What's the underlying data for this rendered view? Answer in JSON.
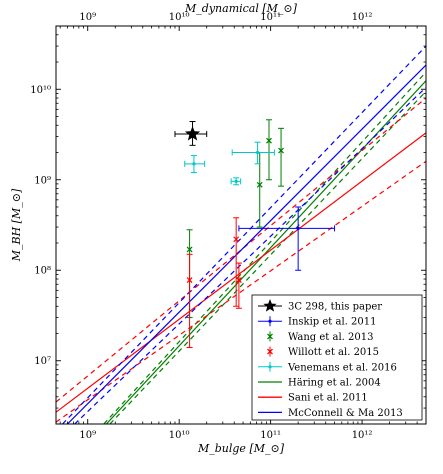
{
  "chart_data": {
    "type": "scatter",
    "xlabel": "M_bulge [M_⊙]",
    "ylabel": "M_BH [M_⊙]",
    "x2label": "M_dynamical [M_⊙]",
    "xscale": "log",
    "yscale": "log",
    "xlim": [
      450000000.0,
      5000000000000.0
    ],
    "ylim": [
      2000000.0,
      50000000000.0
    ],
    "x_ticks": [
      {
        "value": 1000000000.0,
        "label": "10⁹"
      },
      {
        "value": 10000000000.0,
        "label": "10¹⁰"
      },
      {
        "value": 100000000000.0,
        "label": "10¹¹"
      },
      {
        "value": 1000000000000.0,
        "label": "10¹²"
      }
    ],
    "x2_ticks": [
      {
        "value": 1000000000.0,
        "label": "10⁹"
      },
      {
        "value": 10000000000.0,
        "label": "10¹⁰"
      },
      {
        "value": 100000000000.0,
        "label": "10¹¹"
      },
      {
        "value": 1000000000000.0,
        "label": "10¹²"
      }
    ],
    "y_ticks": [
      {
        "value": 10000000.0,
        "label": "10⁷"
      },
      {
        "value": 100000000.0,
        "label": "10⁸"
      },
      {
        "value": 1000000000.0,
        "label": "10⁹"
      },
      {
        "value": 10000000000.0,
        "label": "10¹⁰"
      }
    ],
    "grid": false,
    "legend_position": "bottom-right",
    "series": [
      {
        "name": "3C 298, this paper",
        "kind": "star",
        "color": "#000000",
        "points": [
          {
            "x": 14000000000.0,
            "y": 3200000000.0,
            "xlo": 9000000000.0,
            "xhi": 20000000000.0,
            "ylo": 2400000000.0,
            "yhi": 4400000000.0
          }
        ]
      },
      {
        "name": "Inskip et al. 2011",
        "kind": "errorbar",
        "color": "#0000ff",
        "points": [
          {
            "x": 200000000000.0,
            "y": 290000000.0,
            "xlo": 45000000000.0,
            "xhi": 500000000000.0,
            "ylo": 100000000.0,
            "yhi": 500000000.0
          }
        ]
      },
      {
        "name": "Wang et al. 2013",
        "kind": "x",
        "color": "#008000",
        "points": [
          {
            "x": 13000000000.0,
            "y": 170000000.0,
            "ylo": 30000000.0,
            "yhi": 280000000.0
          },
          {
            "x": 76000000000.0,
            "y": 880000000.0,
            "ylo": 300000000.0,
            "yhi": 2000000000.0
          },
          {
            "x": 96000000000.0,
            "y": 2700000000.0,
            "ylo": 1000000000.0,
            "yhi": 4600000000.0
          },
          {
            "x": 130000000000.0,
            "y": 2100000000.0,
            "ylo": 850000000.0,
            "yhi": 3700000000.0
          }
        ]
      },
      {
        "name": "Willott et al. 2015",
        "kind": "x",
        "color": "#ff0000",
        "points": [
          {
            "x": 13000000000.0,
            "y": 78000000.0,
            "ylo": 14000000.0,
            "yhi": 150000000.0
          },
          {
            "x": 42000000000.0,
            "y": 220000000.0,
            "ylo": 40000000.0,
            "yhi": 380000000.0
          },
          {
            "x": 45000000000.0,
            "y": 78000000.0,
            "ylo": 38000000.0,
            "yhi": 120000000.0
          }
        ]
      },
      {
        "name": "Venemans et al. 2016",
        "kind": "errorbar",
        "color": "#00c8c8",
        "points": [
          {
            "x": 14500000000.0,
            "y": 1500000000.0,
            "xlo": 11500000000.0,
            "xhi": 19000000000.0,
            "ylo": 1200000000.0,
            "yhi": 1850000000.0
          },
          {
            "x": 42000000000.0,
            "y": 960000000.0,
            "xlo": 37000000000.0,
            "xhi": 47000000000.0,
            "ylo": 880000000.0,
            "yhi": 1050000000.0
          },
          {
            "x": 72000000000.0,
            "y": 2000000000.0,
            "xlo": 38000000000.0,
            "xhi": 110000000000.0,
            "ylo": 1500000000.0,
            "yhi": 2600000000.0
          }
        ]
      }
    ],
    "relations": [
      {
        "name": "Häring et al. 2004",
        "color": "#008000",
        "x1": 1600000000.0,
        "y1": 2000000.0,
        "x2": 5000000000000.0,
        "y2": 12400000000.0,
        "dashed": [
          {
            "x1": 1500000000.0,
            "y1": 2000000.0,
            "x2": 5000000000000.0,
            "y2": 15500000000.0
          },
          {
            "x1": 1750000000.0,
            "y1": 2000000.0,
            "x2": 5000000000000.0,
            "y2": 9500000000.0
          }
        ]
      },
      {
        "name": "Sani et al. 2011",
        "color": "#ff0000",
        "x1": 450000000.0,
        "y1": 2700000.0,
        "x2": 5000000000000.0,
        "y2": 3300000000.0,
        "dashed": [
          {
            "x1": 450000000.0,
            "y1": 3500000.0,
            "x2": 5000000000000.0,
            "y2": 8000000000.0
          },
          {
            "x1": 450000000.0,
            "y1": 2100000.0,
            "x2": 5000000000000.0,
            "y2": 1600000000.0
          }
        ]
      },
      {
        "name": "McConnell & Ma 2013",
        "color": "#0000ff",
        "x1": 600000000.0,
        "y1": 2000000.0,
        "x2": 5000000000000.0,
        "y2": 18500000000.0,
        "dashed": [
          {
            "x1": 530000000.0,
            "y1": 2000000.0,
            "x2": 5000000000000.0,
            "y2": 30000000000.0
          },
          {
            "x1": 720000000.0,
            "y1": 2000000.0,
            "x2": 5000000000000.0,
            "y2": 10500000000.0
          }
        ]
      }
    ]
  }
}
